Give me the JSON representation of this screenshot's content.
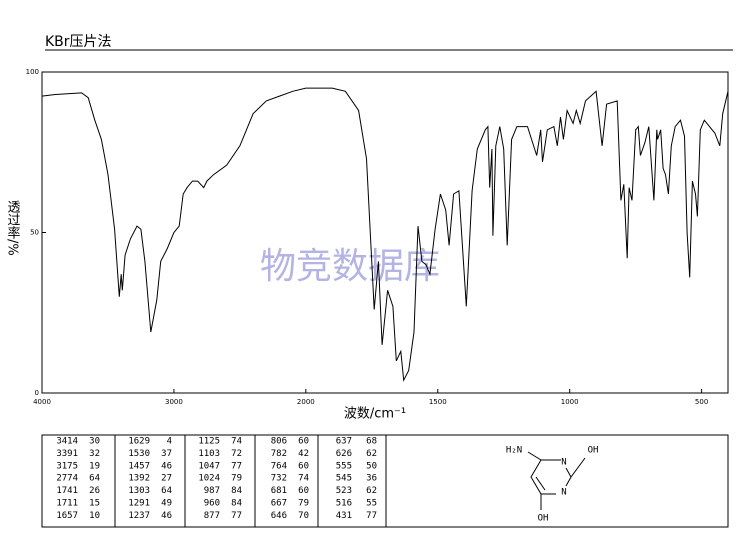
{
  "chart_data": {
    "type": "line",
    "title": "KBr压片法",
    "xlabel": "波数/cm⁻¹",
    "ylabel": "透过率/%",
    "x": [
      4000,
      3900,
      3700,
      3650,
      3600,
      3550,
      3500,
      3450,
      3414,
      3400,
      3391,
      3370,
      3330,
      3280,
      3250,
      3220,
      3175,
      3130,
      3100,
      3050,
      3000,
      2960,
      2930,
      2900,
      2860,
      2820,
      2774,
      2750,
      2700,
      2600,
      2500,
      2400,
      2300,
      2200,
      2100,
      2000,
      1900,
      1850,
      1800,
      1770,
      1741,
      1725,
      1711,
      1690,
      1670,
      1657,
      1640,
      1629,
      1610,
      1590,
      1575,
      1560,
      1545,
      1530,
      1510,
      1490,
      1470,
      1457,
      1440,
      1420,
      1392,
      1370,
      1350,
      1320,
      1310,
      1303,
      1295,
      1291,
      1280,
      1265,
      1250,
      1237,
      1220,
      1200,
      1160,
      1125,
      1110,
      1103,
      1085,
      1060,
      1047,
      1035,
      1024,
      1010,
      987,
      975,
      960,
      940,
      900,
      877,
      860,
      820,
      806,
      795,
      782,
      775,
      764,
      750,
      740,
      732,
      715,
      700,
      681,
      670,
      667,
      655,
      646,
      637,
      626,
      615,
      600,
      580,
      565,
      555,
      545,
      535,
      523,
      516,
      505,
      490,
      470,
      450,
      431,
      420,
      400
    ],
    "values": [
      92.5,
      93,
      93.5,
      92,
      85,
      79,
      68,
      51,
      30,
      37,
      32,
      43,
      48,
      52,
      51,
      41,
      19,
      29,
      41,
      45,
      50,
      52,
      62,
      64,
      66,
      66,
      64,
      66,
      68,
      71,
      77,
      87,
      91,
      92.5,
      94,
      95,
      95,
      94,
      88,
      73,
      26,
      41,
      15,
      32,
      27,
      10,
      13,
      4,
      7,
      19,
      52,
      41,
      40,
      37,
      51,
      62,
      57,
      46,
      62,
      63,
      27,
      63,
      76,
      82,
      83,
      64,
      76,
      49,
      77,
      83,
      76,
      46,
      79,
      83,
      83,
      74,
      82,
      72,
      82,
      83,
      77,
      86,
      79,
      88,
      84,
      88,
      84,
      91,
      94,
      77,
      90,
      91,
      60,
      65,
      42,
      64,
      60,
      82,
      83,
      74,
      78,
      83,
      60,
      82,
      79,
      82,
      70,
      68,
      62,
      77,
      83,
      85,
      80,
      50,
      36,
      66,
      62,
      55,
      82,
      85,
      83,
      81,
      77,
      87,
      94
    ],
    "color": "#000000",
    "xlim": [
      4000,
      400
    ],
    "xticks": [
      4000,
      3000,
      2000,
      1500,
      1000,
      500
    ],
    "ylim": [
      0,
      100
    ],
    "yticks": [
      0,
      50,
      100
    ]
  },
  "peak_table": [
    [
      [
        3414,
        30
      ],
      [
        3391,
        32
      ],
      [
        3175,
        19
      ],
      [
        2774,
        64
      ],
      [
        1741,
        26
      ],
      [
        1711,
        15
      ],
      [
        1657,
        10
      ]
    ],
    [
      [
        1629,
        4
      ],
      [
        1530,
        37
      ],
      [
        1457,
        46
      ],
      [
        1392,
        27
      ],
      [
        1303,
        64
      ],
      [
        1291,
        49
      ],
      [
        1237,
        46
      ]
    ],
    [
      [
        1125,
        74
      ],
      [
        1103,
        72
      ],
      [
        1047,
        77
      ],
      [
        1024,
        79
      ],
      [
        987,
        84
      ],
      [
        960,
        84
      ],
      [
        877,
        77
      ]
    ],
    [
      [
        806,
        60
      ],
      [
        782,
        42
      ],
      [
        764,
        60
      ],
      [
        732,
        74
      ],
      [
        681,
        60
      ],
      [
        667,
        79
      ],
      [
        646,
        70
      ]
    ],
    [
      [
        637,
        68
      ],
      [
        626,
        62
      ],
      [
        555,
        50
      ],
      [
        545,
        36
      ],
      [
        523,
        62
      ],
      [
        516,
        55
      ],
      [
        431,
        77
      ]
    ]
  ],
  "structure": {
    "labels": [
      "H₂N",
      "OH",
      "N",
      "N",
      "OH"
    ]
  },
  "watermark": "物竞数据库"
}
